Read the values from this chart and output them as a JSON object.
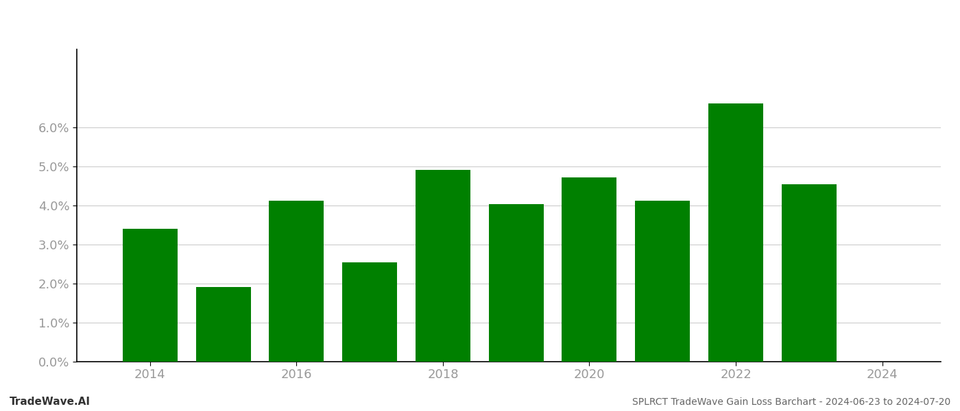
{
  "years": [
    2014,
    2015,
    2016,
    2017,
    2018,
    2019,
    2020,
    2021,
    2022,
    2023
  ],
  "values": [
    0.0341,
    0.0191,
    0.0412,
    0.0254,
    0.0492,
    0.0403,
    0.0472,
    0.0412,
    0.0662,
    0.0455
  ],
  "bar_color": "#008000",
  "background_color": "#ffffff",
  "title": "SPLRCT TradeWave Gain Loss Barchart - 2024-06-23 to 2024-07-20",
  "footer_left": "TradeWave.AI",
  "ylim": [
    0,
    0.08
  ],
  "yticks": [
    0.0,
    0.01,
    0.02,
    0.03,
    0.04,
    0.05,
    0.06
  ],
  "grid_color": "#cccccc",
  "left_spine_color": "#000000",
  "bottom_spine_color": "#000000",
  "tick_label_color": "#999999",
  "title_color": "#666666",
  "footer_color": "#333333",
  "bar_width": 0.75
}
